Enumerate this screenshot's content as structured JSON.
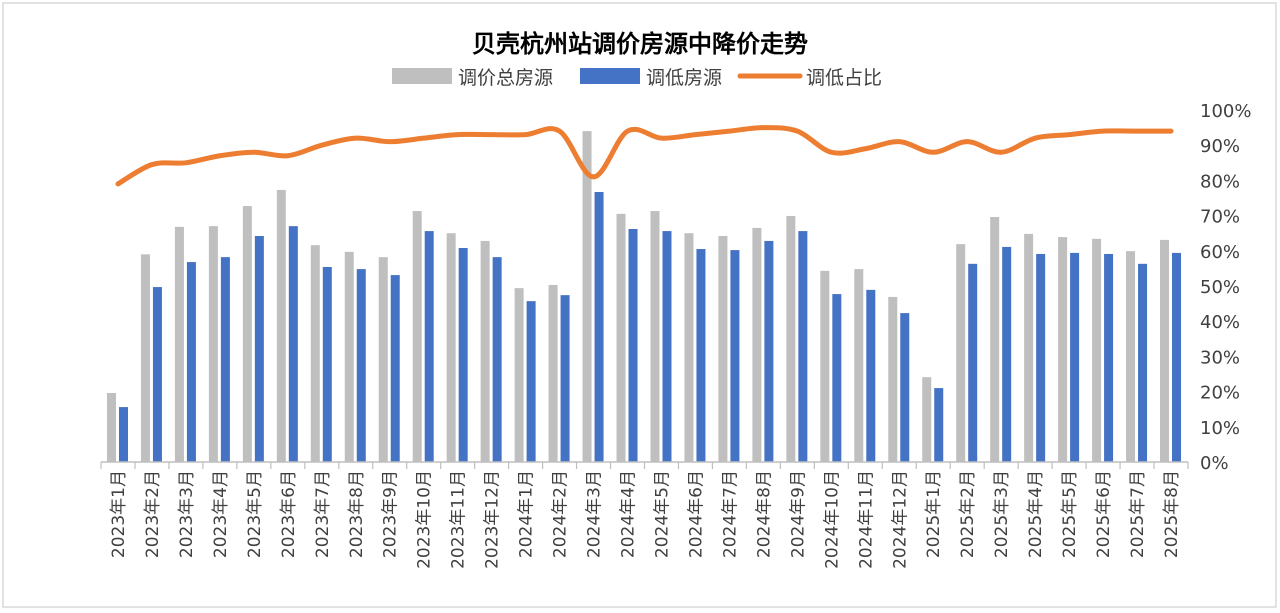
{
  "chart_data": {
    "type": "bar+line",
    "title": "贝壳杭州站调价房源中降价走势",
    "legend_position": "top",
    "grid": false,
    "categories": [
      "2023年1月",
      "2023年2月",
      "2023年3月",
      "2023年4月",
      "2023年5月",
      "2023年6月",
      "2023年7月",
      "2023年8月",
      "2023年9月",
      "2023年10月",
      "2023年11月",
      "2023年12月",
      "2024年1月",
      "2024年2月",
      "2024年3月",
      "2024年4月",
      "2024年5月",
      "2024年6月",
      "2024年7月",
      "2024年8月",
      "2024年9月",
      "2024年10月",
      "2024年11月",
      "2024年12月",
      "2025年1月",
      "2025年2月",
      "2025年3月",
      "2025年4月",
      "2025年5月",
      "2025年6月",
      "2025年7月",
      "2025年8月"
    ],
    "series": [
      {
        "name": "调价总房源",
        "type": "bar",
        "color": "#bfbfbf",
        "values": [
          19.6,
          59.0,
          66.8,
          67.0,
          72.7,
          77.3,
          61.6,
          59.7,
          58.2,
          71.3,
          65.0,
          62.8,
          49.4,
          50.3,
          94.0,
          70.5,
          71.3,
          65.0,
          64.2,
          66.5,
          69.9,
          54.3,
          54.8,
          46.9,
          24.1,
          61.9,
          69.6,
          64.8,
          63.9,
          63.4,
          59.9,
          63.1
        ]
      },
      {
        "name": "调低房源",
        "type": "bar",
        "color": "#4472c4",
        "values": [
          15.6,
          49.7,
          56.8,
          58.2,
          64.2,
          67.0,
          55.4,
          54.8,
          53.1,
          65.6,
          60.8,
          58.2,
          45.7,
          47.4,
          76.7,
          66.2,
          65.6,
          60.5,
          60.2,
          62.8,
          65.6,
          47.7,
          48.9,
          42.3,
          21.0,
          56.3,
          61.1,
          59.1,
          59.4,
          59.1,
          56.3,
          59.4
        ]
      },
      {
        "name": "调低占比",
        "type": "line",
        "color": "#ed7d31",
        "values": [
          79,
          84.5,
          85,
          87,
          88,
          87,
          90,
          92,
          91,
          92,
          93,
          93,
          93,
          94,
          81,
          94,
          92,
          93,
          94,
          95,
          94,
          88,
          89,
          91,
          88,
          91,
          88,
          92,
          93,
          94,
          94,
          94
        ]
      }
    ],
    "y_right": {
      "ticks": [
        "0%",
        "10%",
        "20%",
        "30%",
        "40%",
        "50%",
        "60%",
        "70%",
        "80%",
        "90%",
        "100%"
      ],
      "range": [
        0,
        100
      ]
    }
  }
}
